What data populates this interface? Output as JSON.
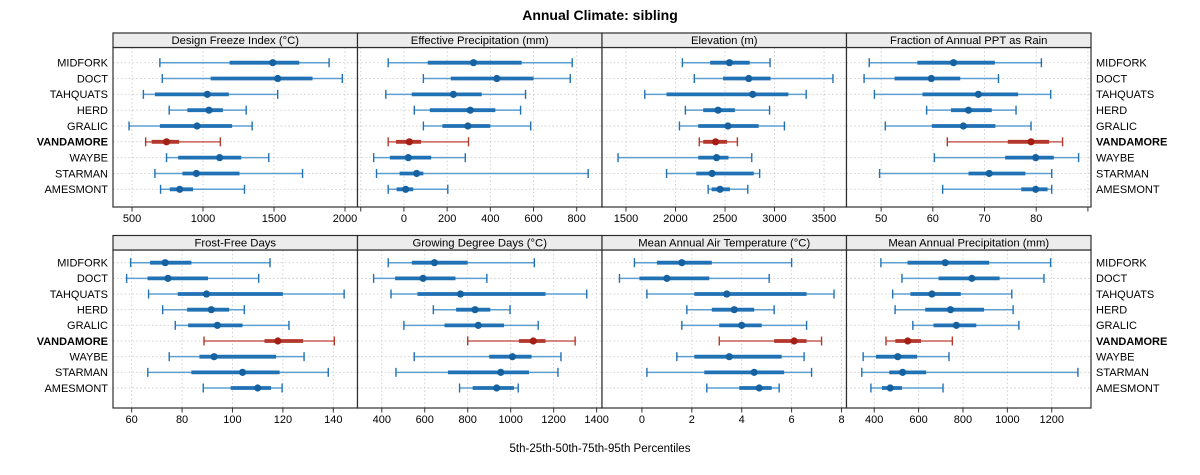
{
  "title": "Annual Climate: sibling",
  "caption": "5th-25th-50th-75th-95th Percentiles",
  "sites": [
    "MIDFORK",
    "DOCT",
    "TAHQUATS",
    "HERD",
    "GRALIC",
    "VANDAMORE",
    "WAYBE",
    "STARMAN",
    "AMESMONT"
  ],
  "highlight_site": "VANDAMORE",
  "percentile_labels": [
    "5th",
    "25th",
    "50th",
    "75th",
    "95th"
  ],
  "colors": {
    "frame": "#2e2e2e",
    "header_bg": "#ececec",
    "grid": "#cccccc",
    "tick": "#333333",
    "text": "#000000",
    "normal_line": "#5e9fd0",
    "normal_band": "#2171b5",
    "normal_point": "#1661a0",
    "highlight_line": "#c75f55",
    "highlight_band": "#b3372c",
    "highlight_point": "#a31f15"
  },
  "chart_data": [
    {
      "type": "dotplot-percentiles",
      "title": "Design Freeze Index (°C)",
      "ticks": [
        500,
        1000,
        1500,
        2000
      ],
      "extra_ticks": [],
      "xlim": [
        366,
        2088
      ],
      "rows": [
        [
          696,
          1187,
          1491,
          1678,
          1888
        ],
        [
          713,
          1054,
          1526,
          1771,
          1981
        ],
        [
          580,
          661,
          1030,
          1182,
          1526
        ],
        [
          762,
          890,
          1042,
          1140,
          1304
        ],
        [
          479,
          696,
          958,
          1205,
          1346
        ],
        [
          596,
          638,
          743,
          832,
          1122
        ],
        [
          743,
          825,
          1117,
          1269,
          1463
        ],
        [
          661,
          855,
          953,
          1257,
          1701
        ],
        [
          701,
          766,
          836,
          930,
          1292
        ]
      ]
    },
    {
      "type": "dotplot-percentiles",
      "title": "Effective Precipitation (mm)",
      "ticks": [
        0,
        200,
        400,
        600,
        800
      ],
      "extra_ticks": [
        -200
      ],
      "xlim": [
        -215,
        917
      ],
      "rows": [
        [
          -73,
          110,
          322,
          545,
          779
        ],
        [
          90,
          217,
          430,
          600,
          770
        ],
        [
          -84,
          36,
          229,
          360,
          563
        ],
        [
          48,
          120,
          307,
          423,
          540
        ],
        [
          90,
          178,
          296,
          400,
          587
        ],
        [
          -73,
          -37,
          25,
          79,
          299
        ],
        [
          -140,
          -65,
          20,
          126,
          284
        ],
        [
          -127,
          -20,
          59,
          90,
          853
        ],
        [
          -73,
          -34,
          8,
          43,
          203
        ]
      ]
    },
    {
      "type": "dotplot-percentiles",
      "title": "Elevation (m)",
      "ticks": [
        1500,
        2000,
        2500,
        3000,
        3500
      ],
      "extra_ticks": [],
      "xlim": [
        1258,
        3727
      ],
      "rows": [
        [
          2070,
          2350,
          2545,
          2750,
          2955
        ],
        [
          2190,
          2480,
          2740,
          2960,
          3590
        ],
        [
          1690,
          1910,
          2780,
          3140,
          3320
        ],
        [
          2100,
          2280,
          2430,
          2600,
          2950
        ],
        [
          2040,
          2230,
          2530,
          2840,
          3100
        ],
        [
          2240,
          2280,
          2405,
          2520,
          2625
        ],
        [
          1420,
          2230,
          2415,
          2535,
          2770
        ],
        [
          1910,
          2210,
          2370,
          2790,
          2850
        ],
        [
          2330,
          2365,
          2450,
          2550,
          2730
        ]
      ]
    },
    {
      "type": "dotplot-percentiles",
      "title": "Fraction of Annual PPT as Rain",
      "ticks": [
        50,
        60,
        70,
        80
      ],
      "extra_ticks": [
        90
      ],
      "xlim": [
        43.3,
        90.6
      ],
      "rows": [
        [
          47.7,
          57.0,
          64.0,
          72.0,
          81.0
        ],
        [
          46.7,
          52.6,
          59.7,
          65.3,
          72.7
        ],
        [
          48.7,
          58.0,
          68.8,
          76.5,
          82.8
        ],
        [
          58.8,
          63.5,
          66.9,
          71.4,
          76.1
        ],
        [
          50.8,
          59.8,
          65.9,
          72.1,
          79.0
        ],
        [
          62.8,
          74.5,
          79.0,
          82.5,
          85.1
        ],
        [
          60.3,
          74.0,
          79.9,
          83.4,
          88.2
        ],
        [
          49.7,
          66.9,
          70.9,
          77.9,
          83.0
        ],
        [
          61.9,
          77.1,
          79.9,
          82.2,
          83.0
        ]
      ]
    },
    {
      "type": "dotplot-percentiles",
      "title": "Frost-Free Days",
      "ticks": [
        60,
        80,
        100,
        120,
        140
      ],
      "extra_ticks": [],
      "xlim": [
        52.6,
        149.6
      ],
      "rows": [
        [
          59.6,
          67.3,
          73.3,
          83.7,
          114.9
        ],
        [
          58.0,
          66.3,
          74.4,
          90.3,
          110.4
        ],
        [
          66.7,
          78.3,
          89.7,
          120.0,
          144.3
        ],
        [
          72.3,
          82.0,
          91.6,
          98.7,
          104.7
        ],
        [
          77.3,
          82.4,
          94.0,
          104.0,
          122.4
        ],
        [
          88.7,
          112.7,
          118.0,
          128.0,
          140.4
        ],
        [
          74.9,
          86.9,
          92.7,
          117.3,
          128.4
        ],
        [
          66.4,
          83.7,
          104.0,
          118.7,
          138.0
        ],
        [
          88.4,
          99.3,
          110.0,
          115.3,
          119.7
        ]
      ]
    },
    {
      "type": "dotplot-percentiles",
      "title": "Growing Degree Days (°C)",
      "ticks": [
        400,
        600,
        800,
        1000,
        1200,
        1400
      ],
      "extra_ticks": [],
      "xlim": [
        287,
        1425
      ],
      "rows": [
        [
          430,
          540,
          645,
          800,
          1110
        ],
        [
          362,
          462,
          592,
          743,
          889
        ],
        [
          443,
          566,
          766,
          1162,
          1354
        ],
        [
          640,
          746,
          834,
          905,
          997
        ],
        [
          503,
          692,
          849,
          969,
          1128
        ],
        [
          800,
          1038,
          1105,
          1162,
          1300
        ],
        [
          551,
          900,
          1008,
          1097,
          1234
        ],
        [
          466,
          708,
          954,
          1085,
          1220
        ],
        [
          762,
          823,
          935,
          1015,
          1035
        ]
      ]
    },
    {
      "type": "dotplot-percentiles",
      "title": "Mean Annual Air Temperature (°C)",
      "ticks": [
        0,
        2,
        4,
        6,
        8
      ],
      "extra_ticks": [],
      "xlim": [
        -1.6,
        8.2
      ],
      "rows": [
        [
          -0.3,
          0.6,
          1.6,
          2.8,
          6.0
        ],
        [
          -0.9,
          -0.1,
          1.0,
          2.7,
          5.1
        ],
        [
          0.2,
          2.1,
          3.4,
          6.6,
          7.7
        ],
        [
          1.8,
          2.8,
          3.7,
          4.5,
          5.3
        ],
        [
          1.6,
          3.1,
          4.0,
          4.8,
          6.6
        ],
        [
          3.1,
          5.3,
          6.1,
          6.6,
          7.2
        ],
        [
          1.4,
          2.1,
          3.5,
          5.6,
          6.5
        ],
        [
          0.2,
          2.5,
          4.5,
          5.7,
          6.8
        ],
        [
          2.6,
          3.9,
          4.7,
          5.2,
          5.5
        ]
      ]
    },
    {
      "type": "dotplot-percentiles",
      "title": "Mean Annual Precipitation (mm)",
      "ticks": [
        400,
        600,
        800,
        1000,
        1200
      ],
      "extra_ticks": [],
      "xlim": [
        275,
        1377
      ],
      "rows": [
        [
          430,
          550,
          720,
          918,
          1195
        ],
        [
          525,
          690,
          840,
          965,
          1165
        ],
        [
          483,
          563,
          660,
          790,
          1020
        ],
        [
          494,
          630,
          744,
          895,
          1026
        ],
        [
          574,
          667,
          770,
          860,
          1052
        ],
        [
          453,
          495,
          551,
          611,
          752
        ],
        [
          350,
          408,
          506,
          593,
          737
        ],
        [
          344,
          468,
          528,
          634,
          1318
        ],
        [
          385,
          435,
          472,
          525,
          710
        ]
      ]
    }
  ]
}
